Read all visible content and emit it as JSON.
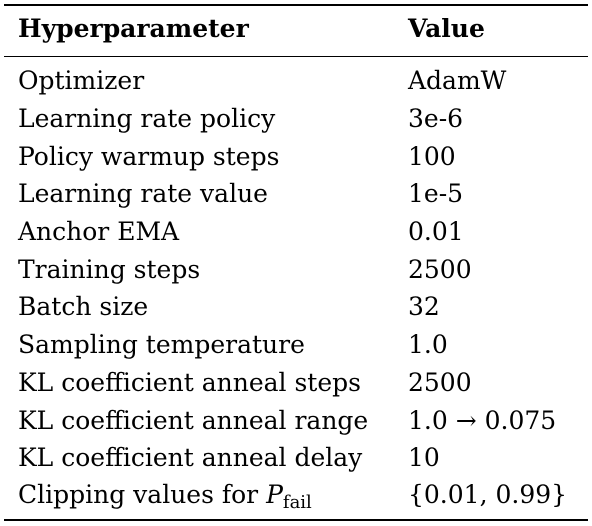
{
  "table": {
    "header": {
      "param": "Hyperparameter",
      "value": "Value"
    },
    "rows": [
      {
        "param": "Optimizer",
        "value": "AdamW"
      },
      {
        "param": "Learning rate policy",
        "value": "3e-6"
      },
      {
        "param": "Policy warmup steps",
        "value": "100"
      },
      {
        "param": "Learning rate value",
        "value": "1e-5"
      },
      {
        "param": "Anchor EMA",
        "value": "0.01"
      },
      {
        "param": "Training steps",
        "value": "2500"
      },
      {
        "param": "Batch size",
        "value": "32"
      },
      {
        "param": "Sampling temperature",
        "value": "1.0"
      },
      {
        "param": "KL coefficient anneal steps",
        "value": "2500"
      },
      {
        "param": "KL coefficient anneal range",
        "value": "1.0 → 0.075"
      },
      {
        "param": "KL coefficient anneal delay",
        "value": "10"
      },
      {
        "param": "Clipping values for ",
        "param_math": "P",
        "param_sub": "fail",
        "value": "{0.01, 0.99}"
      }
    ]
  }
}
